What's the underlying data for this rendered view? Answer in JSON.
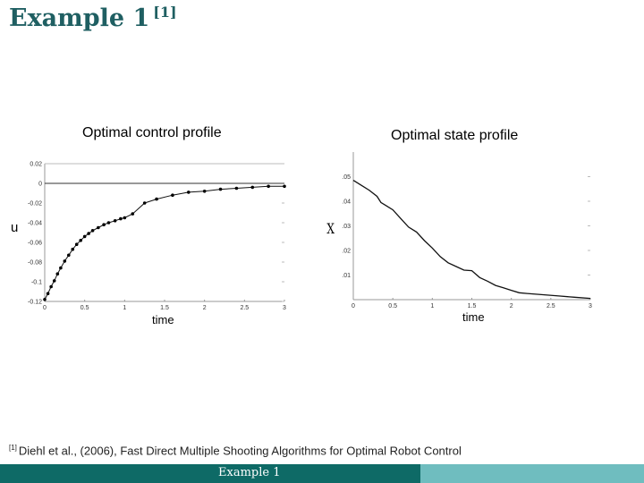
{
  "slide": {
    "title": "Example 1",
    "title_ref": "[1]",
    "footnote_ref": "[1]",
    "footnote": "Diehl et al., (2006), Fast Direct Multiple Shooting Algorithms for  Optimal Robot Control",
    "footer_label": "Example 1",
    "colors": {
      "title": "#1f5f62",
      "footer_dark": "#0e6a66",
      "footer_light": "#6fbdbf"
    }
  },
  "chart_data": [
    {
      "type": "line",
      "title": "Optimal control profile",
      "xlabel": "time",
      "ylabel": "u",
      "xlim": [
        0,
        3
      ],
      "ylim": [
        -0.12,
        0.02
      ],
      "xticks": [
        "0",
        "0.5",
        "1",
        "1.5",
        "2",
        "2.5",
        "3"
      ],
      "yticks": [
        "0.02",
        "0",
        "-0.02",
        "-0.04",
        "-0.06",
        "-0.08",
        "-0.1",
        "-0.12"
      ],
      "markers": true,
      "series": [
        {
          "x": [
            0,
            0.04,
            0.08,
            0.12,
            0.16,
            0.2,
            0.25,
            0.3,
            0.35,
            0.4,
            0.45,
            0.5,
            0.55,
            0.6,
            0.67,
            0.74,
            0.8,
            0.88,
            0.95,
            1.0,
            1.1,
            1.25,
            1.4,
            1.6,
            1.8,
            2.0,
            2.2,
            2.4,
            2.6,
            2.8,
            3.0
          ],
          "y": [
            -0.118,
            -0.112,
            -0.105,
            -0.099,
            -0.092,
            -0.086,
            -0.079,
            -0.073,
            -0.067,
            -0.062,
            -0.058,
            -0.054,
            -0.051,
            -0.048,
            -0.045,
            -0.042,
            -0.04,
            -0.038,
            -0.036,
            -0.035,
            -0.031,
            -0.02,
            -0.016,
            -0.012,
            -0.009,
            -0.008,
            -0.006,
            -0.005,
            -0.004,
            -0.003,
            -0.003
          ]
        }
      ]
    },
    {
      "type": "line",
      "title": "Optimal state profile",
      "xlabel": "time",
      "ylabel": "X",
      "xlim": [
        0,
        3
      ],
      "ylim": [
        0,
        0.06
      ],
      "xticks": [
        "0",
        "0.5",
        "1",
        "1.5",
        "2",
        "2.5",
        "3"
      ],
      "yticks": [
        ".05",
        ".04",
        ".03",
        ".02",
        ".01"
      ],
      "markers": false,
      "series": [
        {
          "x": [
            0,
            0.1,
            0.2,
            0.3,
            0.35,
            0.4,
            0.5,
            0.6,
            0.7,
            0.8,
            0.9,
            1.0,
            1.1,
            1.2,
            1.3,
            1.4,
            1.5,
            1.6,
            1.7,
            1.8,
            1.9,
            2.0,
            2.1,
            2.2,
            2.4,
            2.6,
            2.8,
            3.0
          ],
          "y": [
            0.0485,
            0.0465,
            0.0445,
            0.042,
            0.0395,
            0.0385,
            0.0365,
            0.033,
            0.0295,
            0.0275,
            0.024,
            0.021,
            0.0175,
            0.015,
            0.0135,
            0.012,
            0.0118,
            0.009,
            0.0075,
            0.0058,
            0.0048,
            0.0038,
            0.0028,
            0.0025,
            0.002,
            0.0015,
            0.001,
            0.0005
          ]
        }
      ]
    }
  ]
}
